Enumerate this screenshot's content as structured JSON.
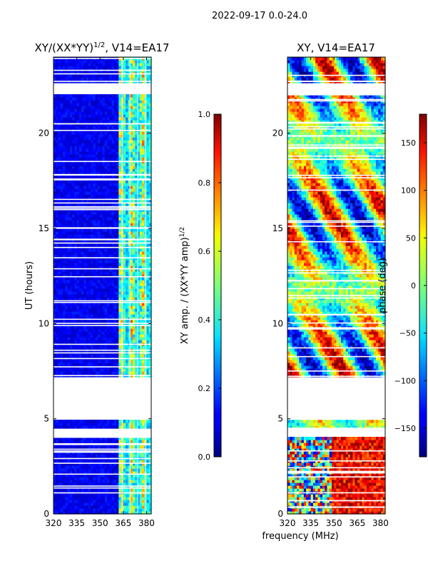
{
  "figure_title": "2022-09-17 0.0-24.0",
  "shared_xlabel": "frequency (MHz)",
  "chart_data": [
    {
      "type": "heatmap",
      "id": "amp",
      "title": "XY/(XX*YY)",
      "title_sup": "1/2",
      "title_rest": ", V14=EA17",
      "ylabel": "UT (hours)",
      "xlim": [
        320,
        383
      ],
      "ylim": [
        0,
        24
      ],
      "xticks": [
        320,
        335,
        350,
        365,
        380
      ],
      "yticks": [
        0,
        5,
        10,
        15,
        20
      ],
      "colorbar": {
        "label": "XY amp. / (XX*YY amp)",
        "label_sup": "1/2",
        "range": [
          0.0,
          1.0
        ],
        "ticks": [
          0.0,
          0.2,
          0.4,
          0.6,
          0.8,
          1.0
        ],
        "tick_labels": [
          "0.0",
          "0.2",
          "0.4",
          "0.6",
          "0.8",
          "1.0"
        ]
      }
    },
    {
      "type": "heatmap",
      "id": "phase",
      "title": "XY, V14=EA17",
      "ylabel": "phase (deg)",
      "xlim": [
        320,
        383
      ],
      "ylim": [
        0,
        24
      ],
      "xticks": [
        320,
        335,
        350,
        365,
        380
      ],
      "yticks": [
        0,
        5,
        10,
        15,
        20
      ],
      "colorbar": {
        "label": "phase (deg)",
        "range": [
          -180,
          180
        ],
        "ticks": [
          -150,
          -100,
          -50,
          0,
          50,
          100,
          150
        ],
        "tick_labels": [
          "−150",
          "−100",
          "−50",
          "0",
          "50",
          "100",
          "150"
        ]
      }
    }
  ],
  "missing_data_hours": [
    [
      4.0,
      4.5
    ],
    [
      5.0,
      7.2
    ],
    [
      22.0,
      22.6
    ]
  ],
  "colors": {
    "background": "#ffffff",
    "axis": "#000000",
    "low": "#00008f",
    "high": "#800000"
  }
}
